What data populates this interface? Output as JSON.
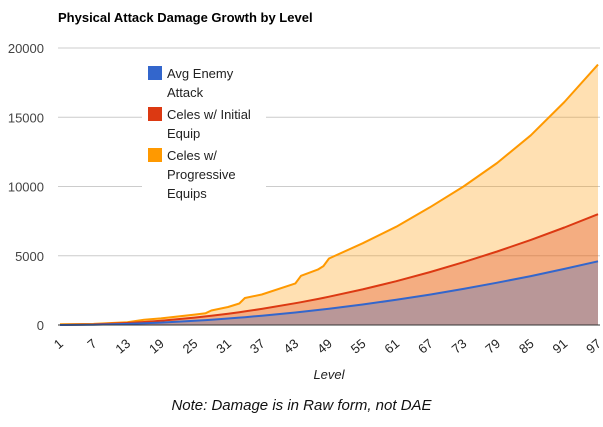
{
  "chart_data": {
    "type": "area",
    "title": "Physical Attack Damage Growth by Level",
    "xlabel": "Level",
    "ylabel": "",
    "ylim": [
      0,
      20000
    ],
    "yticks": [
      0,
      5000,
      10000,
      15000,
      20000
    ],
    "xticks": [
      1,
      7,
      13,
      19,
      25,
      31,
      37,
      43,
      49,
      55,
      61,
      67,
      73,
      79,
      85,
      91,
      97
    ],
    "xlim": [
      1,
      97
    ],
    "grid": true,
    "legend_position": "top-left inside",
    "x": [
      1,
      7,
      13,
      16,
      19,
      25,
      27,
      28,
      31,
      33,
      34,
      37,
      43,
      44,
      47,
      48,
      49,
      55,
      61,
      67,
      73,
      79,
      85,
      91,
      97
    ],
    "series": [
      {
        "name": "Celes w/ Progressive Equips",
        "legend_lines": [
          "Celes w/",
          "Progressive",
          "Equips"
        ],
        "color": "#ff9900",
        "values": [
          50,
          80,
          200,
          380,
          480,
          750,
          850,
          1050,
          1300,
          1550,
          1950,
          2200,
          3000,
          3550,
          4000,
          4250,
          4800,
          5900,
          7100,
          8500,
          10000,
          11700,
          13700,
          16100,
          18800
        ]
      },
      {
        "name": "Celes w/ Initial Equip",
        "legend_lines": [
          "Celes w/ Initial",
          "Equip"
        ],
        "color": "#dc3912",
        "values": [
          1,
          42,
          144,
          218,
          307,
          531,
          620,
          667,
          817,
          926,
          983,
          1164,
          1572,
          1646,
          1878,
          1959,
          2042,
          2572,
          3164,
          3817,
          4531,
          5306,
          6143,
          7041,
          8000
        ]
      },
      {
        "name": "Avg Enemy Attack",
        "legend_lines": [
          "Avg Enemy",
          "Attack"
        ],
        "color": "#3366cc",
        "values": [
          0,
          24,
          83,
          125,
          176,
          306,
          356,
          383,
          470,
          532,
          565,
          669,
          904,
          947,
          1080,
          1126,
          1174,
          1479,
          1819,
          2195,
          2605,
          3051,
          3532,
          4049,
          4600
        ]
      }
    ],
    "legend_order": [
      2,
      1,
      0
    ],
    "annotation": "Note: Damage is in Raw form, not DAE"
  }
}
